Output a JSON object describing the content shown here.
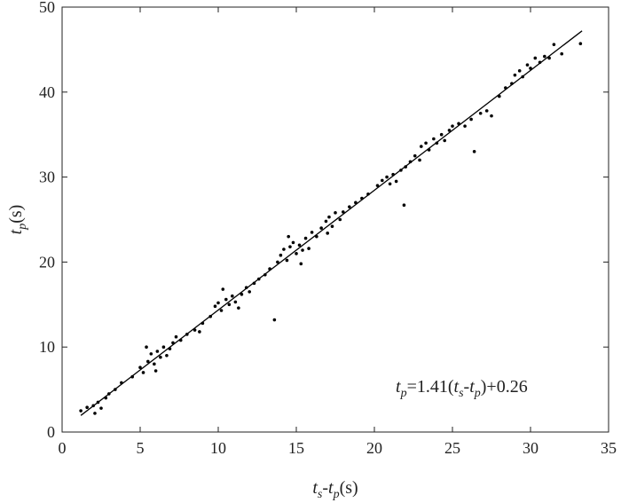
{
  "chart_data": {
    "type": "scatter",
    "xlabel_parts": [
      {
        "text": "t",
        "italic": true
      },
      {
        "text": "s",
        "italic": true,
        "sub": true
      },
      {
        "text": "-"
      },
      {
        "text": "t",
        "italic": true
      },
      {
        "text": "p",
        "italic": true,
        "sub": true
      },
      {
        "text": "(s)"
      }
    ],
    "ylabel_parts": [
      {
        "text": "t",
        "italic": true
      },
      {
        "text": "p",
        "italic": true,
        "sub": true
      },
      {
        "text": "(s)"
      }
    ],
    "annotation_parts": [
      {
        "text": "t",
        "italic": true
      },
      {
        "text": "p",
        "italic": true,
        "sub": true
      },
      {
        "text": "=1.41("
      },
      {
        "text": "t",
        "italic": true
      },
      {
        "text": "s",
        "italic": true,
        "sub": true
      },
      {
        "text": "-"
      },
      {
        "text": "t",
        "italic": true
      },
      {
        "text": "p",
        "italic": true,
        "sub": true
      },
      {
        "text": ")+0.26"
      }
    ],
    "xlim": [
      0,
      35
    ],
    "xticks": [
      0,
      5,
      10,
      15,
      20,
      25,
      30,
      35
    ],
    "ylim": [
      0,
      50
    ],
    "yticks": [
      0,
      10,
      20,
      30,
      40,
      50
    ],
    "fit_line": {
      "color": "#000000",
      "x": [
        1.2,
        33.3
      ],
      "y": [
        1.95,
        47.2
      ]
    },
    "series": [
      {
        "color": "#000000",
        "x": [
          1.2,
          1.6,
          2.0,
          2.1,
          2.3,
          2.5,
          2.8,
          3.0,
          3.4,
          3.8,
          4.5,
          5.0,
          5.2,
          5.5,
          5.7,
          5.9,
          6.1,
          6.3,
          6.5,
          6.7,
          6.9,
          7.1,
          5.4,
          6.0,
          7.3,
          7.6,
          8.0,
          8.5,
          9.0,
          8.8,
          9.5,
          9.8,
          10.0,
          10.2,
          10.5,
          10.7,
          10.9,
          11.1,
          11.3,
          11.5,
          11.8,
          12.0,
          10.3,
          12.3,
          12.6,
          13.0,
          13.3,
          13.6,
          13.8,
          14.0,
          14.2,
          14.4,
          14.6,
          14.8,
          15.0,
          15.2,
          15.4,
          15.6,
          15.8,
          16.0,
          14.5,
          15.3,
          16.3,
          16.6,
          16.9,
          17.1,
          17.3,
          17.5,
          17.8,
          18.0,
          18.4,
          18.8,
          19.2,
          19.6,
          17.0,
          20.2,
          20.5,
          20.8,
          21.0,
          21.2,
          21.4,
          21.7,
          22.0,
          21.9,
          22.3,
          22.6,
          22.9,
          23.0,
          23.3,
          23.5,
          23.8,
          24.0,
          24.3,
          24.5,
          24.8,
          25.0,
          25.4,
          25.8,
          26.2,
          26.4,
          26.8,
          27.2,
          27.5,
          28.0,
          28.4,
          28.8,
          29.0,
          29.3,
          29.5,
          29.8,
          30.0,
          30.3,
          30.6,
          30.9,
          31.2,
          31.5,
          32.0,
          33.2
        ],
        "y": [
          2.5,
          2.9,
          3.1,
          2.2,
          3.5,
          2.8,
          4.0,
          4.5,
          5.0,
          5.8,
          6.5,
          7.6,
          7.0,
          8.3,
          9.2,
          8.0,
          9.5,
          8.8,
          10.0,
          9.0,
          9.8,
          10.5,
          10.0,
          7.2,
          11.2,
          10.8,
          11.5,
          12.0,
          12.8,
          11.8,
          13.6,
          14.8,
          15.2,
          14.3,
          15.6,
          15.0,
          16.0,
          15.3,
          14.6,
          16.2,
          17.0,
          16.5,
          16.8,
          17.5,
          18.0,
          18.5,
          19.2,
          13.2,
          20.0,
          20.8,
          21.5,
          20.2,
          21.8,
          22.3,
          21.0,
          22.0,
          21.4,
          22.8,
          21.6,
          23.5,
          23.0,
          19.8,
          23.0,
          24.0,
          24.8,
          25.3,
          24.2,
          25.8,
          25.0,
          25.9,
          26.5,
          27.0,
          27.5,
          28.0,
          23.4,
          29.0,
          29.6,
          30.0,
          29.2,
          30.3,
          29.5,
          30.8,
          31.2,
          26.7,
          31.8,
          32.5,
          32.0,
          33.6,
          34.0,
          33.2,
          34.5,
          34.0,
          35.0,
          34.3,
          35.5,
          36.0,
          36.3,
          36.0,
          36.8,
          33.0,
          37.5,
          37.8,
          37.2,
          39.5,
          40.5,
          41.0,
          42.0,
          42.5,
          41.8,
          43.2,
          42.8,
          44.0,
          43.5,
          44.2,
          44.0,
          45.6,
          44.5,
          45.7
        ]
      }
    ]
  }
}
